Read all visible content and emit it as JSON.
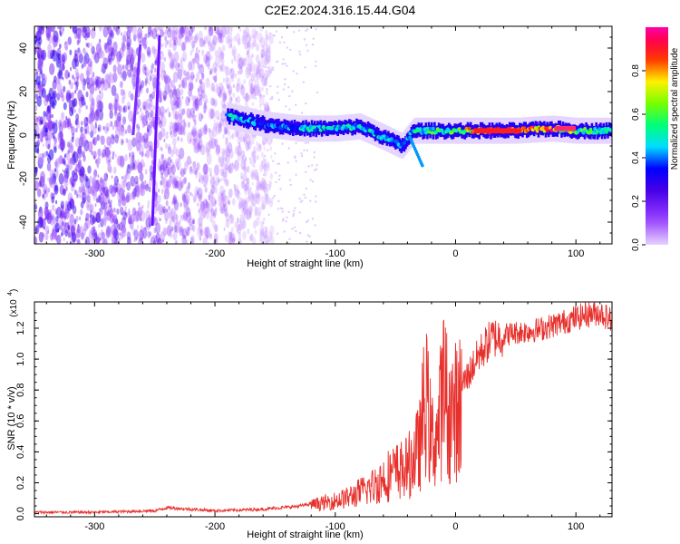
{
  "title": "C2E2.2024.316.15.44.G04",
  "chart_data": [
    {
      "type": "heatmap",
      "title": "C2E2.2024.316.15.44.G04",
      "xlabel": "Height of straight line (km)",
      "ylabel": "Frequency (Hz)",
      "xlim": [
        -350,
        130
      ],
      "ylim": [
        -50,
        50
      ],
      "xticks": [
        -300,
        -200,
        -100,
        0,
        100
      ],
      "xtick_labels": [
        "-300",
        "-200",
        "-100",
        "0",
        "100"
      ],
      "yticks": [
        -40,
        -20,
        0,
        20,
        40
      ],
      "ytick_labels": [
        "-40",
        "-20",
        "0",
        "20",
        "40"
      ],
      "colorbar": {
        "label": "Normalized spectral amplitude",
        "range": [
          0,
          1
        ],
        "ticks": [
          0.0,
          0.2,
          0.4,
          0.6,
          0.8
        ],
        "tick_labels": [
          "0.0",
          "0.2",
          "0.4",
          "0.6",
          "0.8"
        ],
        "colors": [
          "#ffffff",
          "#8b00ff",
          "#0000ff",
          "#00ffff",
          "#00ff00",
          "#ffff00",
          "#ff0000",
          "#ff00aa"
        ]
      },
      "ridge": {
        "description_points_x": [
          -190,
          -160,
          -130,
          -100,
          -80,
          -60,
          -45,
          -35,
          -20,
          0,
          20,
          50,
          80,
          100,
          130
        ],
        "description_points_f": [
          9,
          5,
          3,
          3,
          4,
          -1,
          -5,
          2,
          2,
          2,
          2,
          2,
          3,
          2,
          2
        ],
        "amplitudes": [
          0.5,
          0.4,
          0.45,
          0.5,
          0.5,
          0.45,
          0.45,
          0.5,
          0.55,
          0.6,
          0.9,
          0.95,
          0.9,
          0.6,
          0.55
        ]
      },
      "noise_region_x": [
        -350,
        -160
      ]
    },
    {
      "type": "line",
      "xlabel": "Height of straight line (km)",
      "ylabel": "SNR (10 * v/v)",
      "multiplier": "(x10",
      "multiplier_exp": "4",
      "multiplier_close": ")",
      "xlim": [
        -350,
        130
      ],
      "ylim": [
        -0.02,
        1.37
      ],
      "xticks": [
        -300,
        -200,
        -100,
        0,
        100
      ],
      "xtick_labels": [
        "-300",
        "-200",
        "-100",
        "0",
        "100"
      ],
      "yticks": [
        0.0,
        0.2,
        0.4,
        0.6,
        0.8,
        1.0,
        1.2
      ],
      "ytick_labels": [
        "0.0",
        "0.2",
        "0.4",
        "0.6",
        "0.8",
        "1.0",
        "1.2"
      ],
      "line_color": "#e8302c",
      "series": [
        {
          "name": "SNR",
          "x": [
            -350,
            -300,
            -250,
            -240,
            -200,
            -160,
            -130,
            -110,
            -90,
            -70,
            -55,
            -40,
            -30,
            -25,
            -20,
            -15,
            -10,
            -5,
            0,
            10,
            20,
            30,
            50,
            70,
            90,
            110,
            120,
            130
          ],
          "values": [
            0.01,
            0.01,
            0.02,
            0.04,
            0.02,
            0.03,
            0.05,
            0.08,
            0.12,
            0.2,
            0.3,
            0.35,
            0.5,
            0.9,
            0.55,
            0.6,
            0.95,
            0.75,
            0.78,
            0.9,
            1.05,
            1.15,
            1.18,
            1.2,
            1.25,
            1.3,
            1.31,
            1.26
          ]
        }
      ]
    }
  ]
}
